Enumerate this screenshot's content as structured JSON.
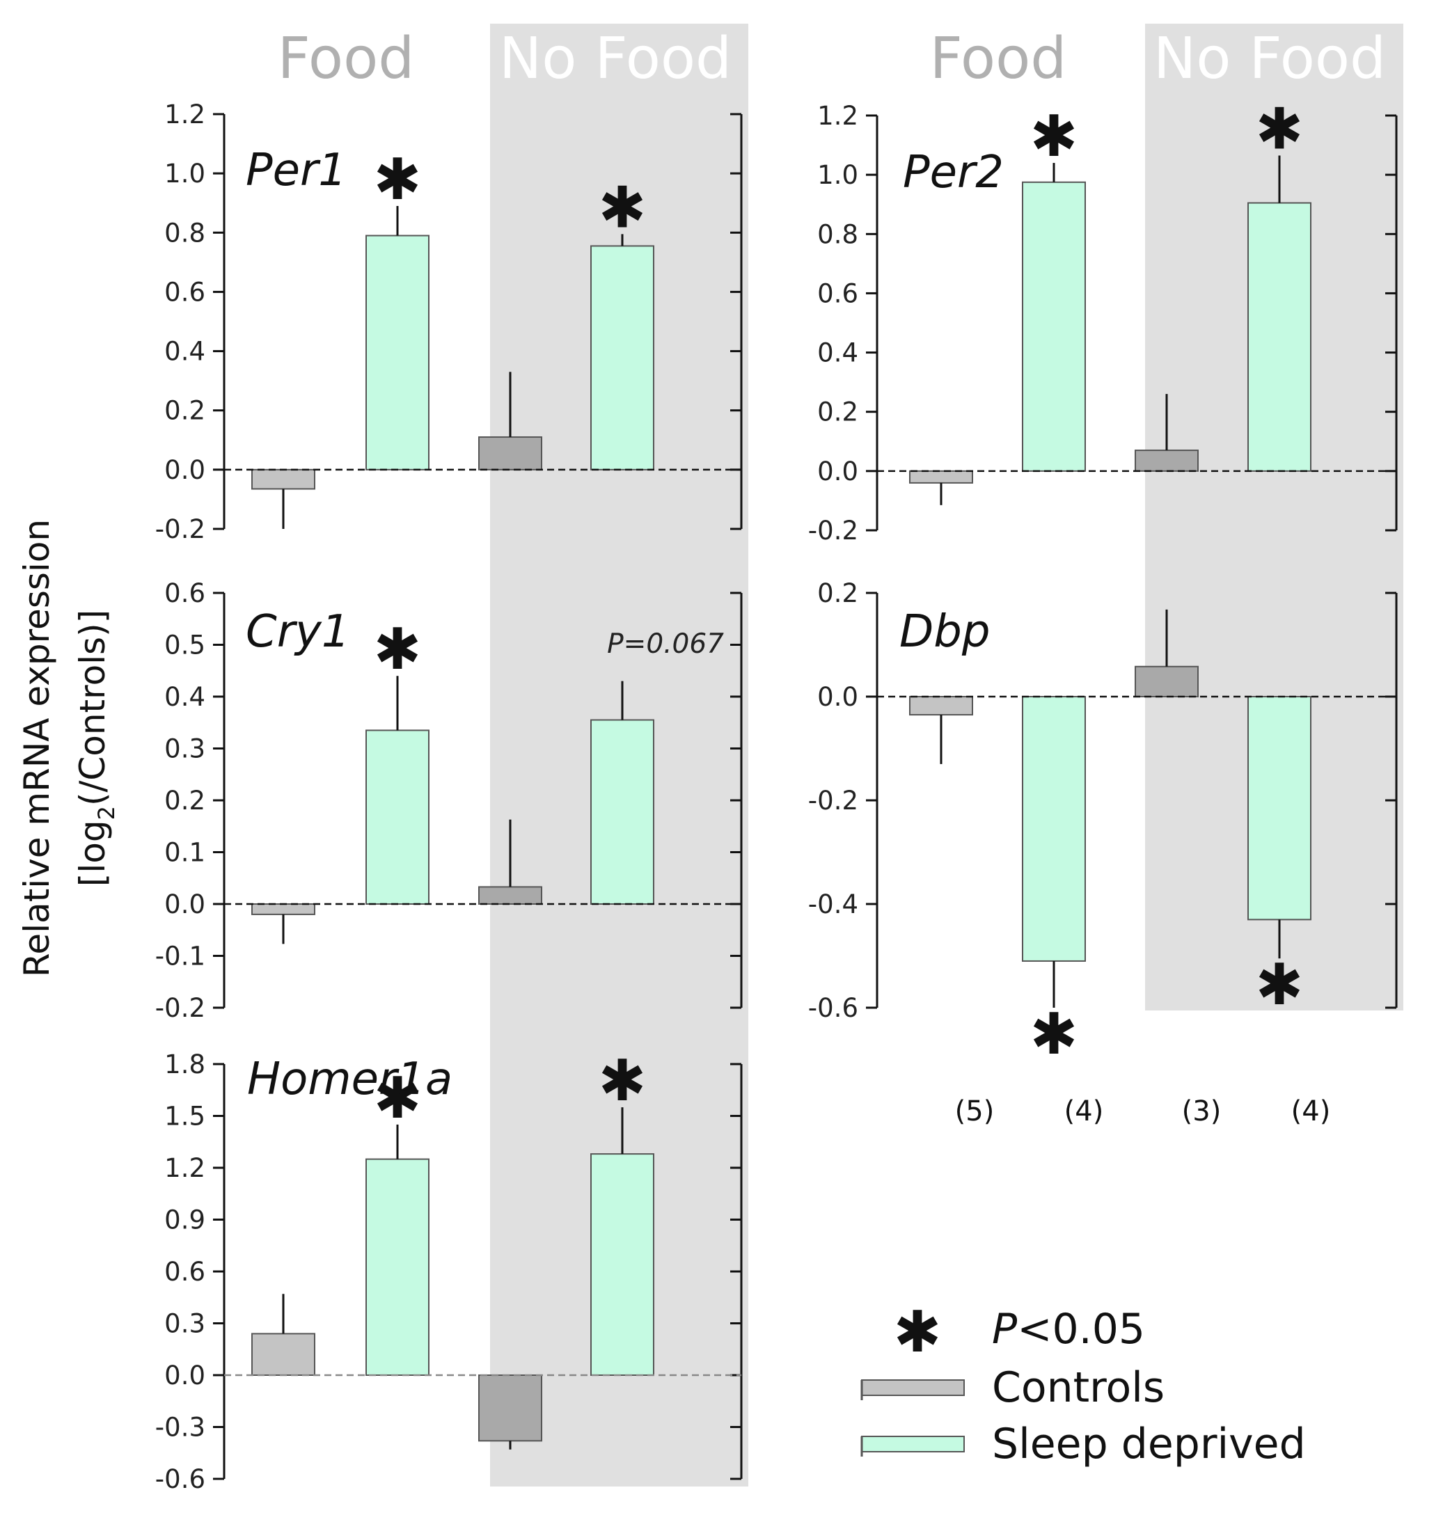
{
  "condition_labels": {
    "food": "Food",
    "no_food": "No Food"
  },
  "y_axis_label": {
    "line1": "Relative mRNA expression",
    "line2_prefix": "[log",
    "line2_sub": "2",
    "line2_suffix": "(/Controls)]"
  },
  "sample_sizes": [
    "(5)",
    "(4)",
    "(3)",
    "(4)"
  ],
  "legend": {
    "significance_symbol": "✱",
    "significance_label": "P<0.05",
    "controls": "Controls",
    "sleep_deprived": "Sleep deprived"
  },
  "colors": {
    "controls_food": "#c4c4c4",
    "controls_nofood": "#a9a9a9",
    "sleep_deprived": "#c5fae2",
    "shade": "#e0e0e0",
    "condition_label": "#b0b0b0",
    "condition_label_shaded": "#ffffff"
  },
  "chart_data": [
    {
      "type": "bar",
      "gene": "Per1",
      "categories": [
        "Food Controls",
        "Food Sleep deprived",
        "No Food Controls",
        "No Food Sleep deprived"
      ],
      "values": [
        -0.065,
        0.79,
        0.11,
        0.755
      ],
      "errors": [
        0.135,
        0.1,
        0.22,
        0.04
      ],
      "significant": [
        false,
        true,
        false,
        true
      ],
      "ylim": [
        -0.2,
        1.2
      ],
      "yticks": [
        "1.2",
        "1.0",
        "0.8",
        "0.6",
        "0.4",
        "0.2",
        "0.0",
        "-0.2"
      ]
    },
    {
      "type": "bar",
      "gene": "Cry1",
      "categories": [
        "Food Controls",
        "Food Sleep deprived",
        "No Food Controls",
        "No Food Sleep deprived"
      ],
      "values": [
        -0.02,
        0.335,
        0.033,
        0.355
      ],
      "errors": [
        0.057,
        0.105,
        0.13,
        0.075
      ],
      "significant": [
        false,
        true,
        false,
        false
      ],
      "annotation": "P=0.067",
      "ylim": [
        -0.2,
        0.6
      ],
      "yticks": [
        "0.6",
        "0.5",
        "0.4",
        "0.3",
        "0.2",
        "0.1",
        "0.0",
        "-0.1",
        "-0.2"
      ]
    },
    {
      "type": "bar",
      "gene": "Homer1a",
      "categories": [
        "Food Controls",
        "Food Sleep deprived",
        "No Food Controls",
        "No Food Sleep deprived"
      ],
      "values": [
        0.24,
        1.25,
        -0.38,
        1.28
      ],
      "errors": [
        0.23,
        0.2,
        0.05,
        0.27
      ],
      "significant": [
        false,
        true,
        false,
        true
      ],
      "ylim": [
        -0.6,
        1.8
      ],
      "yticks": [
        "1.8",
        "1.5",
        "1.2",
        "0.9",
        "0.6",
        "0.3",
        "0.0",
        "-0.3",
        "-0.6"
      ]
    },
    {
      "type": "bar",
      "gene": "Per2",
      "categories": [
        "Food Controls",
        "Food Sleep deprived",
        "No Food Controls",
        "No Food Sleep deprived"
      ],
      "values": [
        -0.04,
        0.975,
        0.07,
        0.905
      ],
      "errors": [
        0.075,
        0.065,
        0.19,
        0.16
      ],
      "significant": [
        false,
        true,
        false,
        true
      ],
      "ylim": [
        -0.2,
        1.2
      ],
      "yticks": [
        "1.2",
        "1.0",
        "0.8",
        "0.6",
        "0.4",
        "0.2",
        "0.0",
        "-0.2"
      ]
    },
    {
      "type": "bar",
      "gene": "Dbp",
      "categories": [
        "Food Controls",
        "Food Sleep deprived",
        "No Food Controls",
        "No Food Sleep deprived"
      ],
      "values": [
        -0.035,
        -0.51,
        0.058,
        -0.43
      ],
      "errors": [
        0.095,
        0.09,
        0.11,
        0.075
      ],
      "significant": [
        false,
        true,
        false,
        true
      ],
      "ylim": [
        -0.6,
        0.2
      ],
      "yticks": [
        "0.2",
        "0.0",
        "-0.2",
        "-0.4",
        "-0.6"
      ]
    }
  ]
}
